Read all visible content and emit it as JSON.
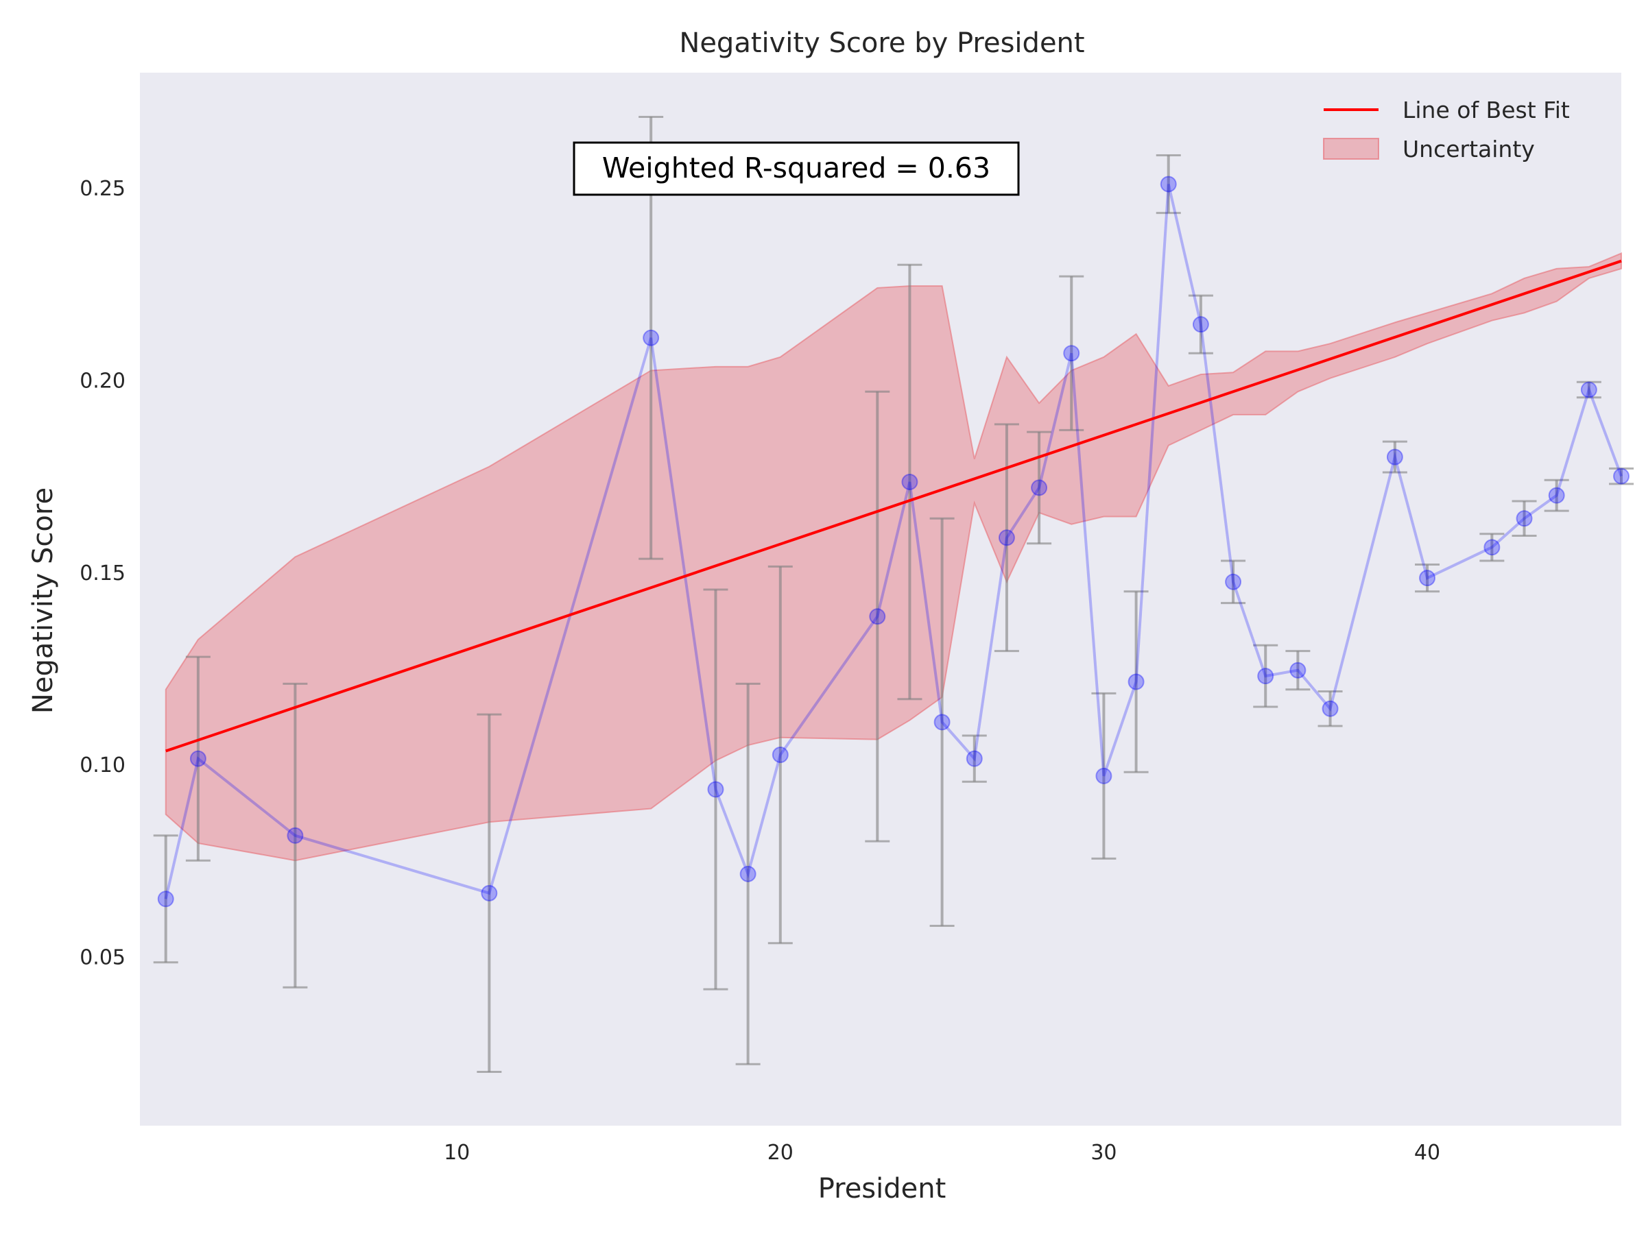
{
  "chart_data": {
    "type": "line",
    "title": "Negativity Score by President",
    "xlabel": "President",
    "ylabel": "Negativity Score",
    "xlim": [
      0.2,
      46.0
    ],
    "ylim": [
      0.006,
      0.28
    ],
    "xticks": [
      10,
      20,
      30,
      40
    ],
    "yticks": [
      0.05,
      0.1,
      0.15,
      0.2,
      0.25
    ],
    "xtick_labels": [
      "10",
      "20",
      "30",
      "40"
    ],
    "ytick_labels": [
      "0.05",
      "0.10",
      "0.15",
      "0.20",
      "0.25"
    ],
    "grid": false,
    "legend_position": "top-right",
    "colors": {
      "background": "#eaeaf2",
      "points": "#0000ff",
      "fit_line": "#ff0000",
      "band": "#e8666e",
      "errorbars": "#808080"
    },
    "legend": [
      {
        "label": "Line of Best Fit",
        "kind": "line"
      },
      {
        "label": "Uncertainty",
        "kind": "patch"
      }
    ],
    "annotation": "Weighted R-squared = 0.63",
    "series": [
      {
        "kind": "points-with-error",
        "points": [
          {
            "x": 1,
            "y": 0.065,
            "err": 0.0165
          },
          {
            "x": 2,
            "y": 0.1015,
            "err": 0.0265
          },
          {
            "x": 5,
            "y": 0.0815,
            "err": 0.0395
          },
          {
            "x": 11,
            "y": 0.0665,
            "err": 0.0465
          },
          {
            "x": 16,
            "y": 0.211,
            "err": 0.0575
          },
          {
            "x": 18,
            "y": 0.0935,
            "err": 0.052
          },
          {
            "x": 19,
            "y": 0.0715,
            "err": 0.0495
          },
          {
            "x": 20,
            "y": 0.1025,
            "err": 0.049
          },
          {
            "x": 23,
            "y": 0.1385,
            "err": 0.0585
          },
          {
            "x": 24,
            "y": 0.1735,
            "err": 0.0565
          },
          {
            "x": 25,
            "y": 0.111,
            "err": 0.053
          },
          {
            "x": 26,
            "y": 0.1015,
            "err": 0.006
          },
          {
            "x": 27,
            "y": 0.159,
            "err": 0.0295
          },
          {
            "x": 28,
            "y": 0.172,
            "err": 0.0145
          },
          {
            "x": 29,
            "y": 0.207,
            "err": 0.02
          },
          {
            "x": 30,
            "y": 0.097,
            "err": 0.0215
          },
          {
            "x": 31,
            "y": 0.1215,
            "err": 0.0235
          },
          {
            "x": 32,
            "y": 0.251,
            "err": 0.0075
          },
          {
            "x": 33,
            "y": 0.2145,
            "err": 0.0075
          },
          {
            "x": 34,
            "y": 0.1475,
            "err": 0.0055
          },
          {
            "x": 35,
            "y": 0.123,
            "err": 0.008
          },
          {
            "x": 36,
            "y": 0.1245,
            "err": 0.005
          },
          {
            "x": 37,
            "y": 0.1145,
            "err": 0.0045
          },
          {
            "x": 39,
            "y": 0.18,
            "err": 0.004
          },
          {
            "x": 40,
            "y": 0.1485,
            "err": 0.0035
          },
          {
            "x": 42,
            "y": 0.1565,
            "err": 0.0035
          },
          {
            "x": 43,
            "y": 0.164,
            "err": 0.0045
          },
          {
            "x": 44,
            "y": 0.17,
            "err": 0.004
          },
          {
            "x": 45,
            "y": 0.1975,
            "err": 0.002
          },
          {
            "x": 46,
            "y": 0.175,
            "err": 0.002
          }
        ]
      },
      {
        "name": "Line of Best Fit",
        "kind": "line",
        "x": [
          1,
          46
        ],
        "y": [
          0.1035,
          0.231
        ]
      },
      {
        "name": "Uncertainty",
        "kind": "band",
        "x": [
          1,
          2,
          5,
          11,
          16,
          18,
          19,
          20,
          23,
          24,
          25,
          26,
          27,
          28,
          29,
          30,
          31,
          32,
          33,
          34,
          35,
          36,
          37,
          39,
          40,
          42,
          43,
          44,
          45,
          46
        ],
        "lower": [
          0.087,
          0.0795,
          0.075,
          0.085,
          0.0885,
          0.101,
          0.105,
          0.107,
          0.1065,
          0.1115,
          0.1175,
          0.168,
          0.1475,
          0.1655,
          0.1625,
          0.1645,
          0.1645,
          0.183,
          0.187,
          0.191,
          0.191,
          0.197,
          0.2005,
          0.206,
          0.2095,
          0.2155,
          0.2175,
          0.2205,
          0.2265,
          0.229
        ],
        "upper": [
          0.1195,
          0.1325,
          0.154,
          0.1775,
          0.2025,
          0.2035,
          0.2035,
          0.206,
          0.224,
          0.2245,
          0.2245,
          0.1795,
          0.206,
          0.194,
          0.2025,
          0.206,
          0.212,
          0.1985,
          0.2015,
          0.202,
          0.2075,
          0.2075,
          0.2095,
          0.215,
          0.2175,
          0.2225,
          0.2265,
          0.229,
          0.2295,
          0.233
        ]
      }
    ]
  }
}
